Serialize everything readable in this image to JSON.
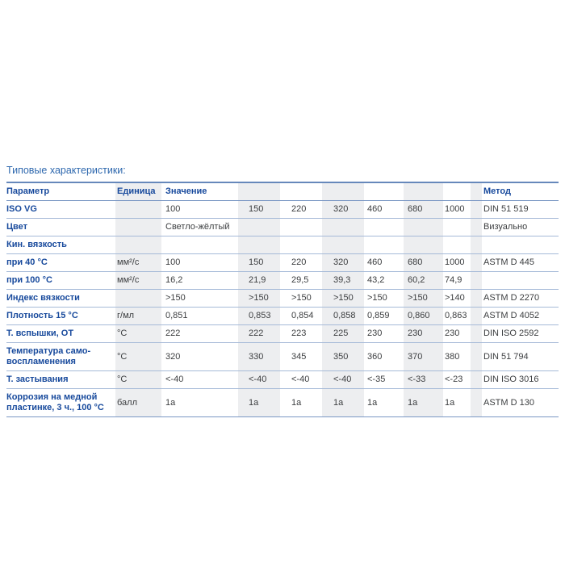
{
  "page_title": "Типовые характеристики:",
  "colors": {
    "label_blue": "#17499c",
    "title_blue": "#2e68ae",
    "value_text": "#3c3e40",
    "stripe_gray": "#edeef0",
    "rule_blue": "#a6bad8",
    "rule_strong_blue": "#6688bb"
  },
  "table": {
    "headers": {
      "parameter": "Параметр",
      "unit": "Единица",
      "value": "Значение",
      "method": "Метод"
    },
    "rows": [
      {
        "parameter": "ISO VG",
        "unit": "",
        "values": [
          "100",
          "150",
          "220",
          "320",
          "460",
          "680",
          "1000"
        ],
        "method": "DIN 51 519"
      },
      {
        "parameter": "Цвет",
        "unit": "",
        "values": [
          "Светло-жёлтый",
          "",
          "",
          "",
          "",
          "",
          ""
        ],
        "method": "Визуально"
      },
      {
        "parameter": "Кин. вязкость",
        "unit": "",
        "values": [
          "",
          "",
          "",
          "",
          "",
          "",
          ""
        ],
        "method": "",
        "section": true
      },
      {
        "parameter": "при 40 °C",
        "unit": "мм²/с",
        "values": [
          "100",
          "150",
          "220",
          "320",
          "460",
          "680",
          "1000"
        ],
        "method": "ASTM D 445"
      },
      {
        "parameter": "при 100 °C",
        "unit": "мм²/с",
        "values": [
          "16,2",
          "21,9",
          "29,5",
          "39,3",
          "43,2",
          "60,2",
          "74,9"
        ],
        "method": ""
      },
      {
        "parameter": "Индекс вязкости",
        "unit": "",
        "values": [
          ">150",
          ">150",
          ">150",
          ">150",
          ">150",
          ">150",
          ">140"
        ],
        "method": "ASTM D 2270"
      },
      {
        "parameter": "Плотность 15 °C",
        "unit": "г/мл",
        "values": [
          "0,851",
          "0,853",
          "0,854",
          "0,858",
          "0,859",
          "0,860",
          "0,863"
        ],
        "method": "ASTM D 4052"
      },
      {
        "parameter": "Т. вспышки, ОТ",
        "unit": "°C",
        "values": [
          "222",
          "222",
          "223",
          "225",
          "230",
          "230",
          "230"
        ],
        "method": "DIN ISO 2592"
      },
      {
        "parameter": "Температура само-\nвоспламенения",
        "unit": "°C",
        "values": [
          "320",
          "330",
          "345",
          "350",
          "360",
          "370",
          "380"
        ],
        "method": "DIN 51 794"
      },
      {
        "parameter": "Т. застывания",
        "unit": "°C",
        "values": [
          "<-40",
          "<-40",
          "<-40",
          "<-40",
          "<-35",
          "<-33",
          "<-23"
        ],
        "method": "DIN ISO 3016"
      },
      {
        "parameter": "Коррозия на медной\nпластинке, 3 ч., 100 °C",
        "unit": "балл",
        "values": [
          "1a",
          "1a",
          "1a",
          "1a",
          "1a",
          "1a",
          "1a"
        ],
        "method": "ASTM D 130"
      }
    ]
  }
}
